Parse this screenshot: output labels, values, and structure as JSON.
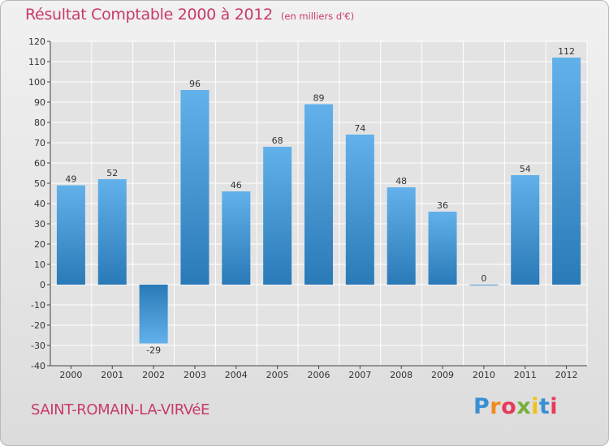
{
  "chart_data": {
    "type": "bar",
    "title": "Résultat Comptable 2000 à 2012",
    "subtitle": "(en milliers d'€)",
    "categories": [
      "2000",
      "2001",
      "2002",
      "2003",
      "2004",
      "2005",
      "2006",
      "2007",
      "2008",
      "2009",
      "2010",
      "2011",
      "2012"
    ],
    "values": [
      49,
      52,
      -29,
      96,
      46,
      68,
      89,
      74,
      48,
      36,
      0,
      54,
      112
    ],
    "ylim": [
      -40,
      120
    ],
    "yticks": [
      -40,
      -30,
      -20,
      -10,
      0,
      10,
      20,
      30,
      40,
      50,
      60,
      70,
      80,
      90,
      100,
      110,
      120
    ],
    "grid": true,
    "xlabel": "",
    "ylabel": ""
  },
  "commune": "SAINT-ROMAIN-LA-VIRVéE",
  "logo": {
    "text": "Proxiti",
    "letter_colors": [
      "#3a8fd4",
      "#f08a1c",
      "#e83a5a",
      "#74b03a",
      "#f2c21a",
      "#3a8fd4",
      "#e83a5a"
    ]
  },
  "colors": {
    "title": "#c83a6c",
    "bar_top": "#62b1ea",
    "bar_bottom": "#2a7ab8",
    "grid": "#ffffff",
    "axis": "#444444"
  }
}
